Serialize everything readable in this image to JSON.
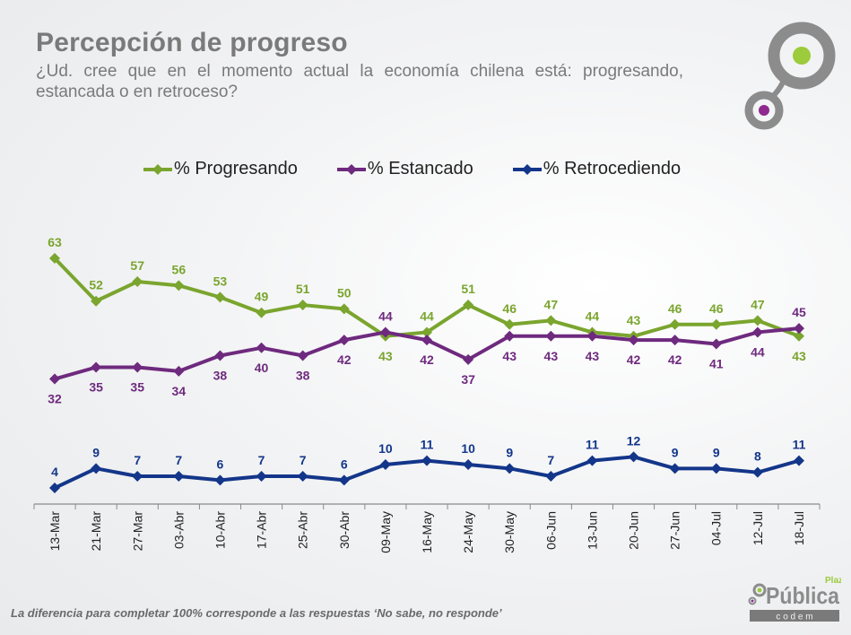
{
  "header": {
    "title": "Percepción de progreso",
    "subtitle": "¿Ud. cree que en el momento actual la economía chilena está: progresando, estancada o en retroceso?"
  },
  "footnote": "La diferencia para completar 100% corresponde a las respuestas ‘No sabe, no responde’",
  "logo": {
    "brand_small": "Plaza",
    "brand_main": "Pública",
    "brand_sub": "c o d e m",
    "colors": {
      "gray": "#8c8c8c",
      "green": "#9ccb3b",
      "purple": "#8e2a8e"
    }
  },
  "chart_data": {
    "type": "line",
    "title": "Percepción de progreso",
    "xlabel": "",
    "ylabel": "",
    "ylim": [
      0,
      65
    ],
    "grid": false,
    "legend_position": "top",
    "categories": [
      "13-Mar",
      "21-Mar",
      "27-Mar",
      "03-Abr",
      "10-Abr",
      "17-Abr",
      "25-Abr",
      "30-Abr",
      "09-May",
      "16-May",
      "24-May",
      "30-May",
      "06-Jun",
      "13-Jun",
      "20-Jun",
      "27-Jun",
      "04-Jul",
      "12-Jul",
      "18-Jul"
    ],
    "series": [
      {
        "name": "% Progresando",
        "color": "#7aa52e",
        "values": [
          63,
          52,
          57,
          56,
          53,
          49,
          51,
          50,
          43,
          44,
          51,
          46,
          47,
          44,
          43,
          46,
          46,
          47,
          43
        ],
        "label_pos": [
          "above",
          "above",
          "above",
          "above",
          "above",
          "above",
          "above",
          "above",
          "below",
          "above",
          "above",
          "above",
          "above",
          "above",
          "above",
          "above",
          "above",
          "above",
          "below"
        ]
      },
      {
        "name": "% Estancado",
        "color": "#6e2a7e",
        "values": [
          32,
          35,
          35,
          34,
          38,
          40,
          38,
          42,
          44,
          42,
          37,
          43,
          43,
          43,
          42,
          42,
          41,
          44,
          45
        ],
        "label_pos": [
          "below",
          "below",
          "below",
          "below",
          "below",
          "below",
          "below",
          "below",
          "above",
          "below",
          "below",
          "below",
          "below",
          "below",
          "below",
          "below",
          "below",
          "below",
          "above"
        ]
      },
      {
        "name": "% Retrocediendo",
        "color": "#13368a",
        "values": [
          4,
          9,
          7,
          7,
          6,
          7,
          7,
          6,
          10,
          11,
          10,
          9,
          7,
          11,
          12,
          9,
          9,
          8,
          11
        ],
        "label_pos": [
          "above",
          "above",
          "above",
          "above",
          "above",
          "above",
          "above",
          "above",
          "above",
          "above",
          "above",
          "above",
          "above",
          "above",
          "above",
          "above",
          "above",
          "above",
          "above"
        ]
      }
    ]
  }
}
